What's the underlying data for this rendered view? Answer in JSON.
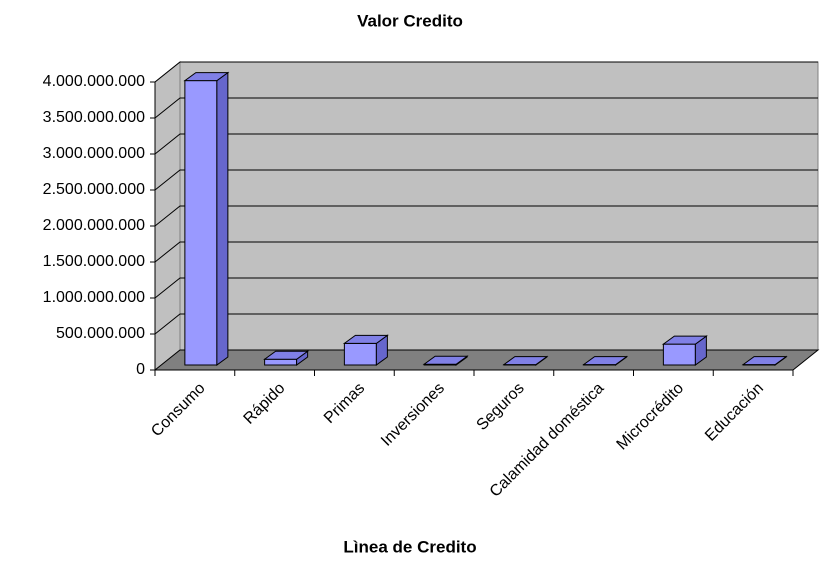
{
  "chart_data": {
    "type": "bar3d",
    "title": "Valor Credito",
    "x_label": "Lìnea de Credito",
    "categories": [
      "Consumo",
      "Rápido",
      "Primas",
      "Inversiones",
      "Seguros",
      "Calamidad doméstica",
      "Microcrédito",
      "Educación"
    ],
    "values": [
      3950000000,
      80000000,
      300000000,
      10000000,
      5000000,
      5000000,
      290000000,
      5000000
    ],
    "color": "#9999ff",
    "ylim": [
      0,
      4000000000
    ],
    "yticks": [
      0,
      {
        "value": 500000000,
        "label": "500.000.000"
      },
      {
        "value": 1000000000,
        "label": "1.000.000.000"
      },
      {
        "value": 1500000000,
        "label": "1.500.000.000"
      },
      {
        "value": 2000000000,
        "label": "2.000.000.000"
      },
      {
        "value": 2500000000,
        "label": "2.500.000.000"
      },
      {
        "value": 3000000000,
        "label": "3.000.000.000"
      },
      {
        "value": 3500000000,
        "label": "3.500.000.000"
      },
      {
        "value": 4000000000,
        "label": "4.000.000.000"
      }
    ],
    "grid": true
  }
}
